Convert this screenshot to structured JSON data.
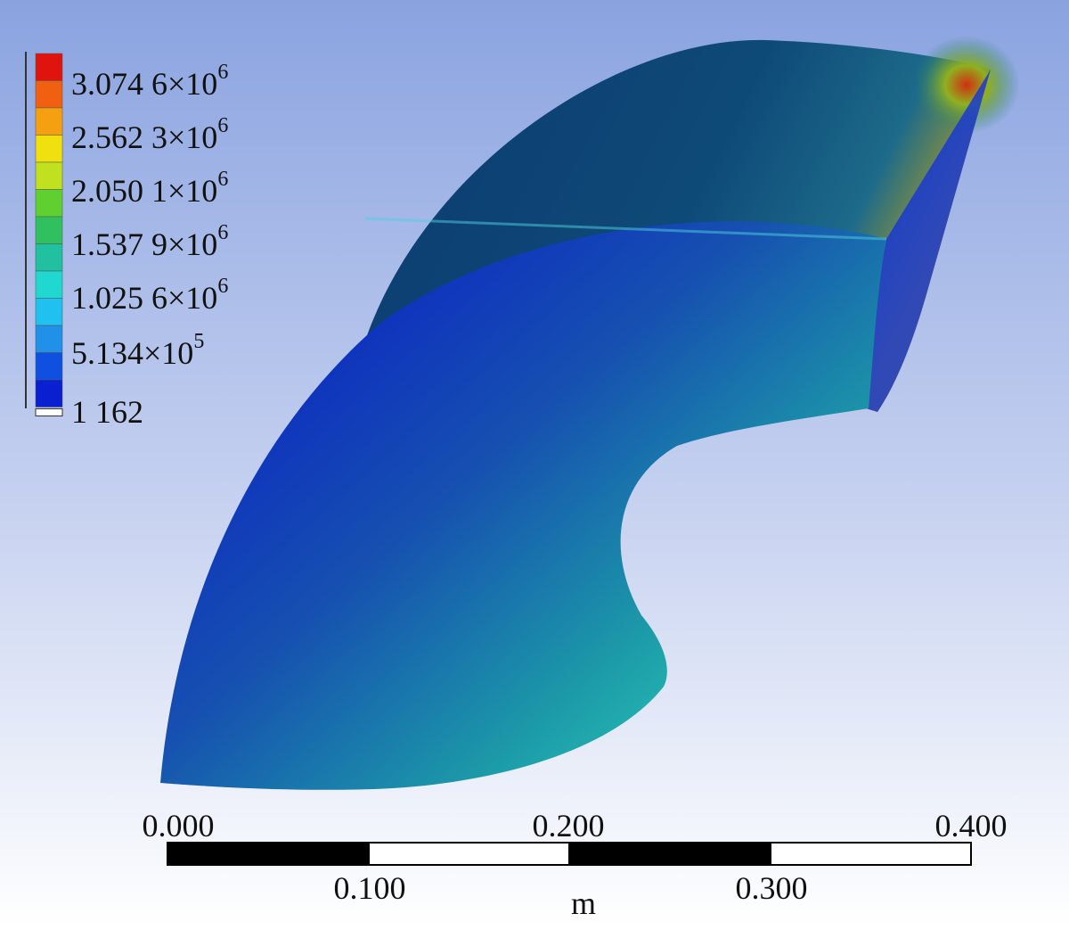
{
  "legend": {
    "colors": [
      "#e0140e",
      "#f06010",
      "#f5a010",
      "#f0e010",
      "#c0e020",
      "#60d030",
      "#30c060",
      "#20c0a0",
      "#20d8d0",
      "#20c0f0",
      "#2090e8",
      "#1050e0",
      "#0a20d0"
    ],
    "labels": [
      {
        "text": "3.074 6×10",
        "sup": "6"
      },
      {
        "text": "2.562 3×10",
        "sup": "6"
      },
      {
        "text": "2.050 1×10",
        "sup": "6"
      },
      {
        "text": "1.537 9×10",
        "sup": "6"
      },
      {
        "text": "1.025 6×10",
        "sup": "6"
      },
      {
        "text": "5.134×10",
        "sup": "5"
      },
      {
        "text": "1 162"
      }
    ]
  },
  "scale_bar": {
    "labels": [
      "0.000",
      "0.200",
      "0.400",
      "0.100",
      "0.300"
    ],
    "unit": "m"
  }
}
